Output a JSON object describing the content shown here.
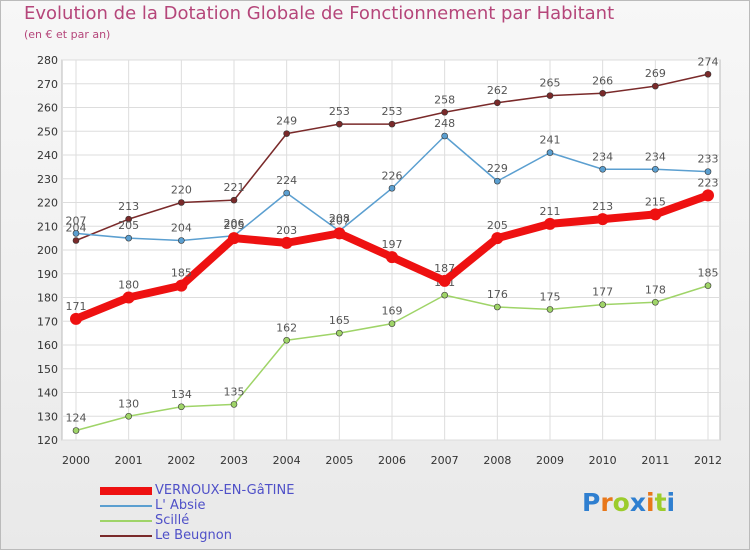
{
  "chart_data": {
    "type": "line",
    "title": "Evolution de la Dotation Globale de Fonctionnement par Habitant",
    "subtitle": "(en € et par an)",
    "xlabel": "",
    "ylabel": "",
    "ylim": [
      120,
      280
    ],
    "yticks": [
      120,
      130,
      140,
      150,
      160,
      170,
      180,
      190,
      200,
      210,
      220,
      230,
      240,
      250,
      260,
      270,
      280
    ],
    "categories": [
      "2000",
      "2001",
      "2002",
      "2003",
      "2004",
      "2005",
      "2006",
      "2007",
      "2008",
      "2009",
      "2010",
      "2011",
      "2012"
    ],
    "grid": true,
    "legend": "bottom-left",
    "series": [
      {
        "name": "Le Beugnon",
        "color": "#7a2a2a",
        "values": [
          204,
          213,
          220,
          221,
          249,
          253,
          253,
          258,
          262,
          265,
          266,
          269,
          274
        ]
      },
      {
        "name": "L' Absie",
        "color": "#5b9fd0",
        "values": [
          207,
          205,
          204,
          206,
          224,
          208,
          226,
          248,
          229,
          241,
          234,
          234,
          233
        ]
      },
      {
        "name": "Scillé",
        "color": "#9fd468",
        "values": [
          124,
          130,
          134,
          135,
          162,
          165,
          169,
          181,
          176,
          175,
          177,
          178,
          185
        ]
      },
      {
        "name": "VERNOUX-EN-GâTINE",
        "color": "#ee1111",
        "values": [
          171,
          180,
          185,
          205,
          203,
          207,
          197,
          187,
          205,
          211,
          213,
          215,
          223
        ]
      }
    ]
  },
  "legend_items": [
    {
      "label": "VERNOUX-EN-GâTINE",
      "color": "#ee1111"
    },
    {
      "label": "L' Absie",
      "color": "#5b9fd0"
    },
    {
      "label": "Scillé",
      "color": "#9fd468"
    },
    {
      "label": "Le Beugnon",
      "color": "#7a2a2a"
    }
  ],
  "logo": {
    "letters": [
      "P",
      "r",
      "o",
      "x",
      "i",
      "t",
      "i"
    ],
    "colors": [
      "#2f7fd0",
      "#e8771a",
      "#9ccc2c",
      "#2f7fd0",
      "#e8771a",
      "#9ccc2c",
      "#2f7fd0"
    ]
  }
}
